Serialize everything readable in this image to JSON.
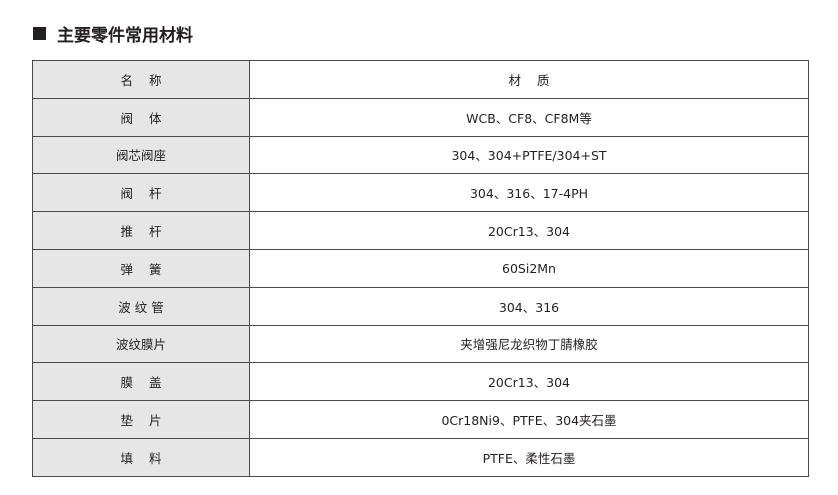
{
  "title": "主要零件常用材料",
  "header": {
    "name": "名    称",
    "material": "材    质"
  },
  "rows": [
    {
      "name": "阀    体",
      "material": "WCB、CF8、CF8M等"
    },
    {
      "name": "阀芯阀座",
      "material": "304、304+PTFE/304+ST"
    },
    {
      "name": "阀    杆",
      "material": "304、316、17-4PH"
    },
    {
      "name": "推    杆",
      "material": "20Cr13、304"
    },
    {
      "name": "弹    簧",
      "material": "60Si2Mn"
    },
    {
      "name": "波 纹 管",
      "material": "304、316"
    },
    {
      "name": "波纹膜片",
      "material": "夹增强尼龙织物丁腈橡胶"
    },
    {
      "name": "膜    盖",
      "material": "20Cr13、304"
    },
    {
      "name": "垫    片",
      "material": "0Cr18Ni9、PTFE、304夹石墨"
    },
    {
      "name": "填    料",
      "material": "PTFE、柔性石墨"
    }
  ]
}
